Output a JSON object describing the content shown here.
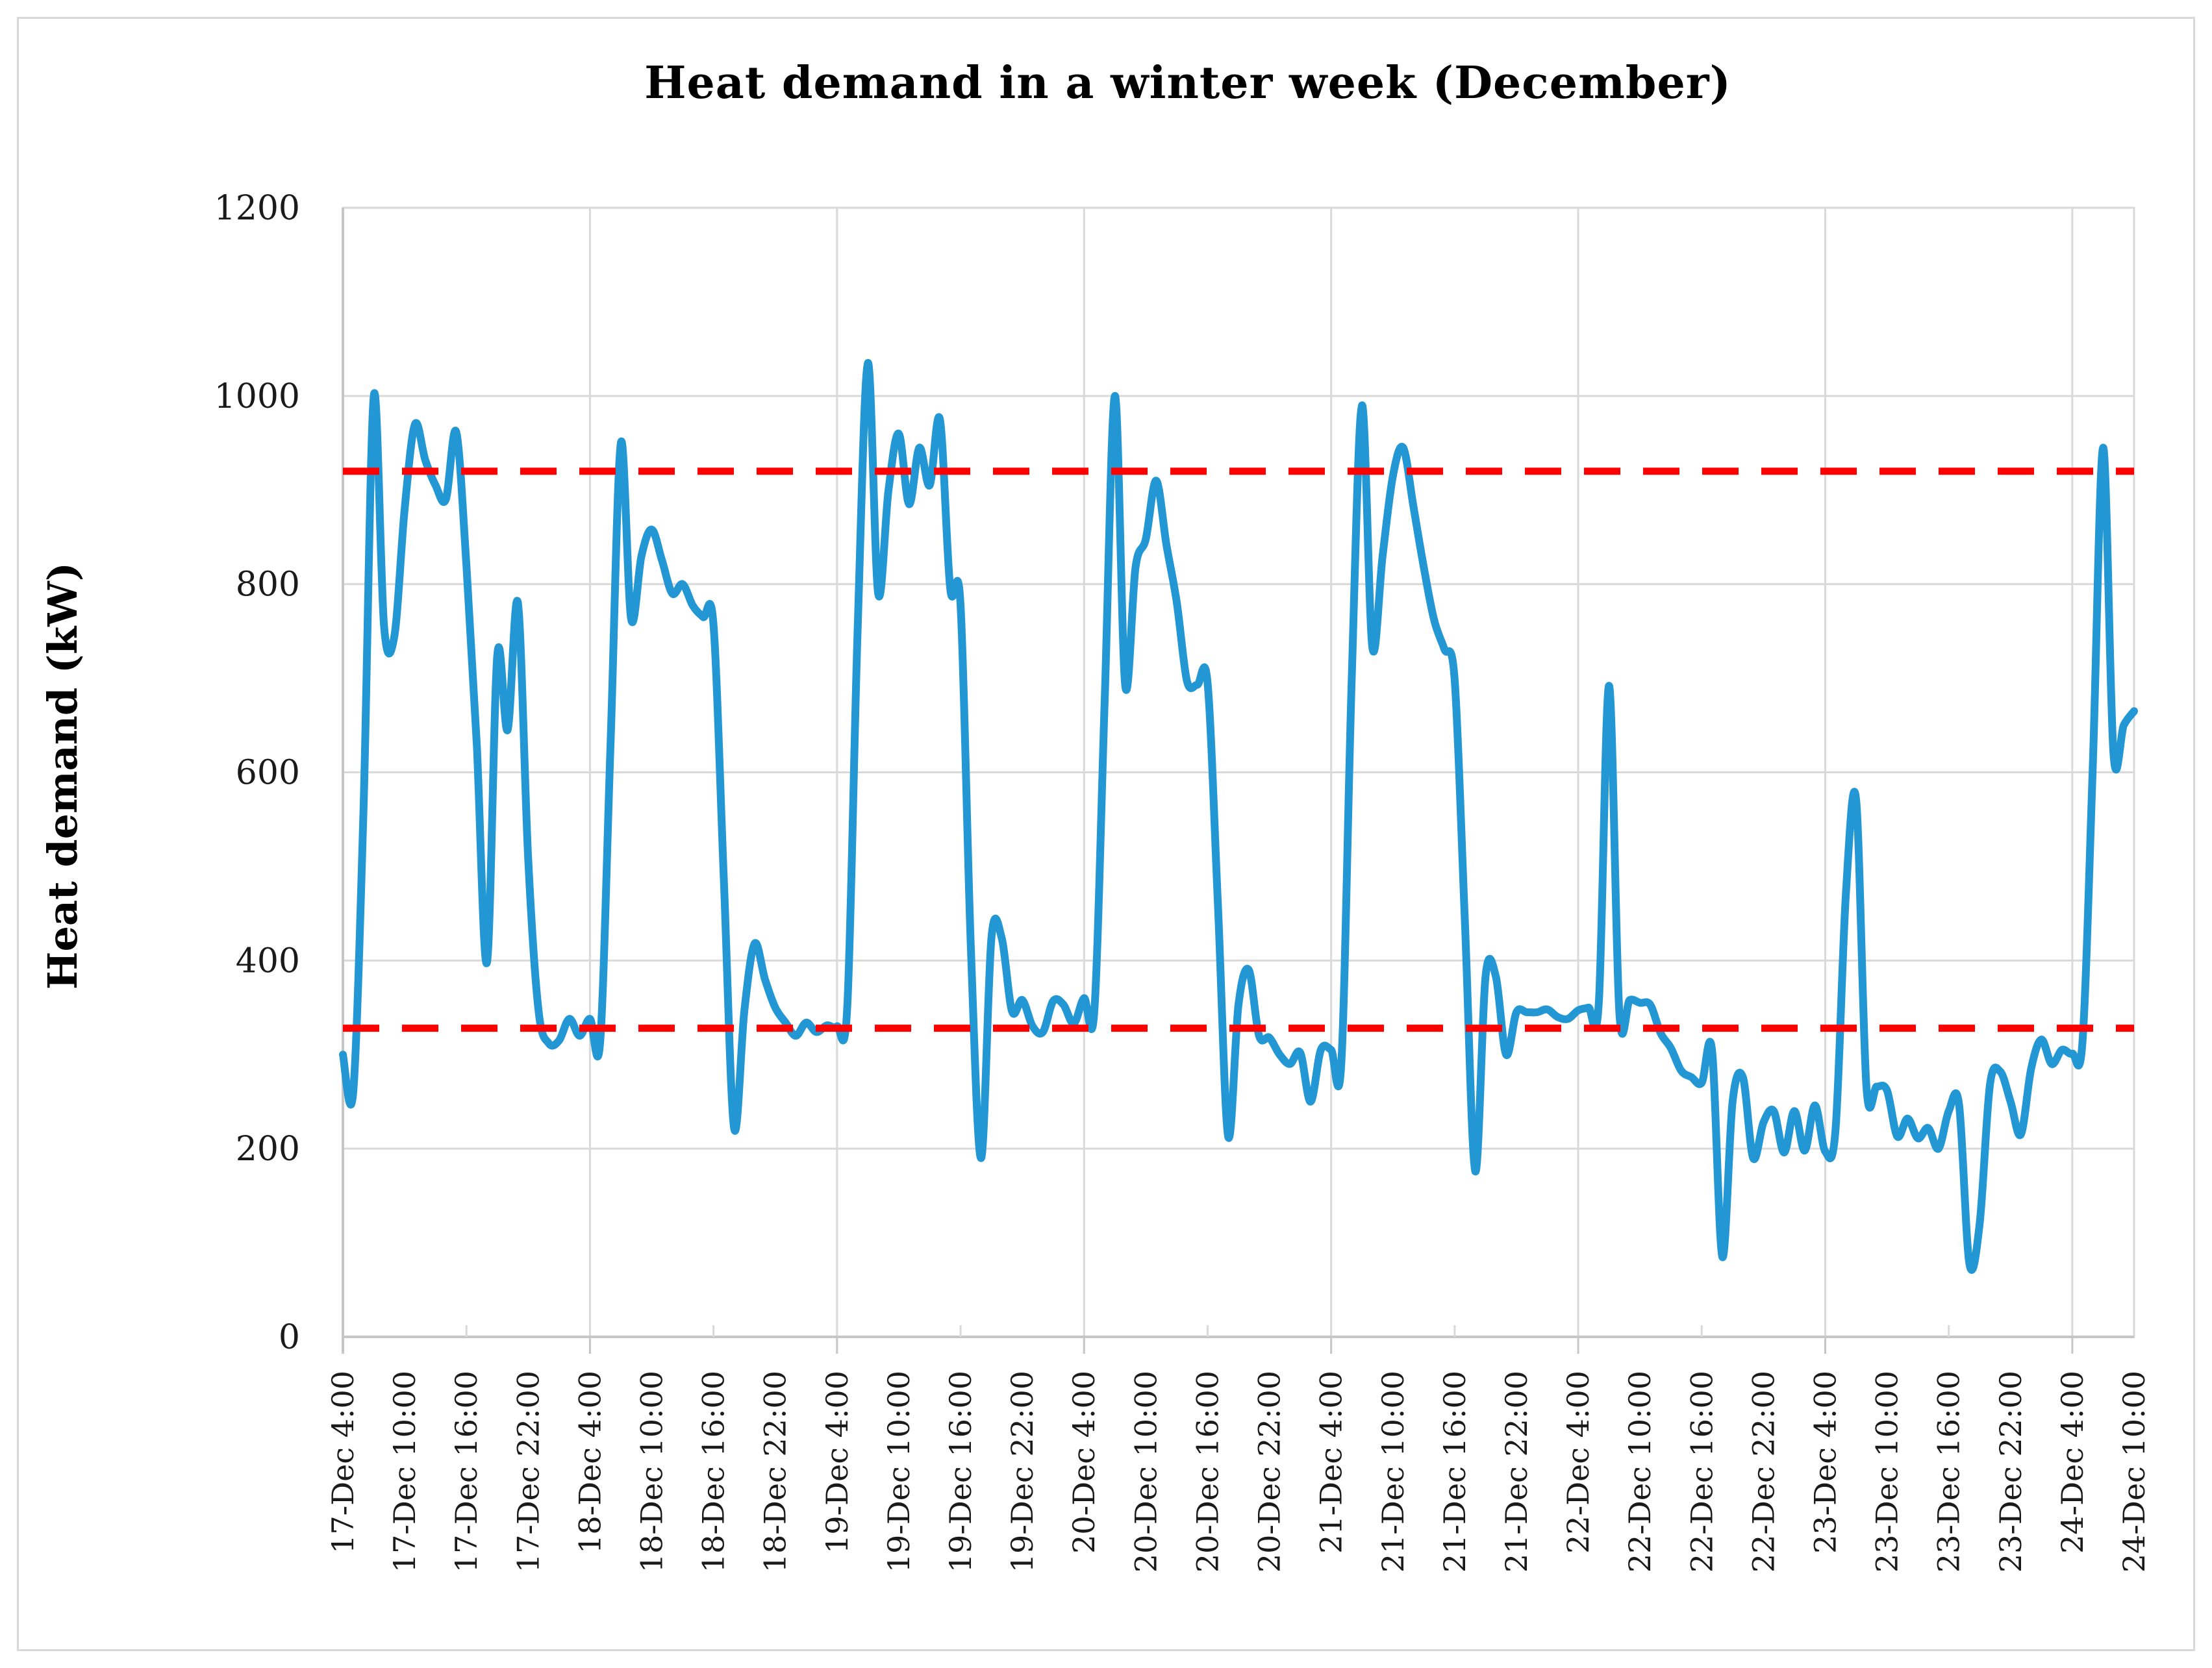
{
  "chart_data": {
    "type": "line",
    "title": "Heat demand in a winter week (December)",
    "ylabel": "Heat demand (kW)",
    "xlabel": "",
    "ylim": [
      0,
      1200
    ],
    "ytick_labels": [
      "0",
      "200",
      "400",
      "600",
      "800",
      "1000",
      "1200"
    ],
    "yticks": [
      0,
      200,
      400,
      600,
      800,
      1000,
      1200
    ],
    "grid": {
      "horizontal_every_kW": 200,
      "vertical_every_hours": 24,
      "gridlines_on": true
    },
    "legend": "none",
    "x_total_hours": 174,
    "hours_between_points": 1,
    "x_tick_interval_hours": 6,
    "x_tick_labels": [
      "17-Dec 4:00",
      "17-Dec 10:00",
      "17-Dec 16:00",
      "17-Dec 22:00",
      "18-Dec 4:00",
      "18-Dec 10:00",
      "18-Dec 16:00",
      "18-Dec 22:00",
      "19-Dec 4:00",
      "19-Dec 10:00",
      "19-Dec 16:00",
      "19-Dec 22:00",
      "20-Dec 4:00",
      "20-Dec 10:00",
      "20-Dec 16:00",
      "20-Dec 22:00",
      "21-Dec 4:00",
      "21-Dec 10:00",
      "21-Dec 16:00",
      "21-Dec 22:00",
      "22-Dec 4:00",
      "22-Dec 10:00",
      "22-Dec 16:00",
      "22-Dec 22:00",
      "23-Dec 4:00",
      "23-Dec 10:00",
      "23-Dec 16:00",
      "23-Dec 22:00",
      "24-Dec 4:00",
      "24-Dec 10:00"
    ],
    "series": [
      {
        "name": "Heat demand (kW)",
        "color": "#2397d4",
        "line_style": "smooth",
        "values": [
          300,
          260,
          560,
          1000,
          755,
          745,
          880,
          970,
          932,
          905,
          890,
          962,
          820,
          630,
          398,
          725,
          645,
          780,
          508,
          347,
          312,
          315,
          338,
          320,
          338,
          315,
          630,
          950,
          763,
          830,
          858,
          825,
          790,
          800,
          777,
          765,
          757,
          487,
          222,
          347,
          418,
          380,
          350,
          334,
          320,
          334,
          324,
          331,
          330,
          352,
          750,
          1035,
          790,
          900,
          960,
          885,
          945,
          905,
          975,
          795,
          778,
          414,
          190,
          424,
          424,
          346,
          358,
          330,
          324,
          357,
          353,
          333,
          360,
          347,
          675,
          1000,
          692,
          818,
          848,
          910,
          842,
          781,
          697,
          693,
          695,
          460,
          213,
          353,
          390,
          320,
          318,
          300,
          290,
          302,
          250,
          305,
          305,
          293,
          700,
          990,
          733,
          830,
          915,
          945,
          882,
          818,
          762,
          731,
          698,
          440,
          176,
          383,
          383,
          300,
          345,
          345,
          345,
          348,
          340,
          338,
          347,
          350,
          355,
          692,
          344,
          358,
          355,
          353,
          323,
          307,
          283,
          276,
          270,
          305,
          85,
          250,
          276,
          190,
          228,
          240,
          196,
          240,
          198,
          246,
          197,
          220,
          470,
          571,
          266,
          266,
          262,
          213,
          232,
          211,
          222,
          200,
          240,
          247,
          78,
          120,
          268,
          282,
          250,
          215,
          285,
          316,
          290,
          305,
          301,
          315,
          610,
          945,
          620,
          650,
          665
        ]
      }
    ],
    "reference_lines": [
      {
        "value": 920,
        "color": "#ff0000",
        "style": "dashed"
      },
      {
        "value": 328,
        "color": "#ff0000",
        "style": "dashed"
      }
    ]
  },
  "colors": {
    "series_blue": "#2397d4",
    "reference_red": "#ff0000",
    "gridline": "#d9d9d9",
    "axis_line": "#c6c6c6",
    "border": "#d8d8d8",
    "text": "#1a1a1a"
  }
}
